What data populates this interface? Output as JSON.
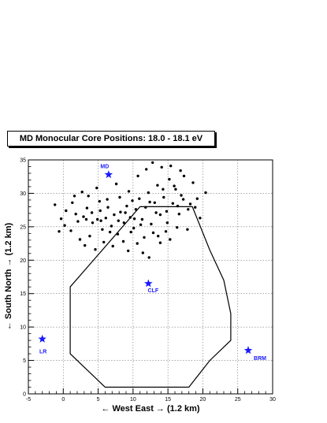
{
  "chart_data": {
    "type": "scatter",
    "title": "MD Monocular Core Positions: 18.0 - 18.1 eV",
    "xlabel": "← West East → (1.2 km)",
    "ylabel": "← South North → (1.2 km)",
    "xlim": [
      -5,
      30
    ],
    "ylim": [
      0,
      35
    ],
    "grid": true,
    "x_ticks": [
      "-5",
      "0",
      "5",
      "10",
      "15",
      "20",
      "25",
      "30"
    ],
    "y_ticks": [
      "0",
      "5",
      "10",
      "15",
      "20",
      "25",
      "30",
      "35"
    ],
    "sites": [
      {
        "name": "MD",
        "x": 6.5,
        "y": 32.8
      },
      {
        "name": "CLF",
        "x": 12.2,
        "y": 16.5
      },
      {
        "name": "LR",
        "x": -3.0,
        "y": 8.2
      },
      {
        "name": "BRM",
        "x": 26.5,
        "y": 6.5
      }
    ],
    "boundary": [
      [
        1,
        16
      ],
      [
        11,
        28
      ],
      [
        18.5,
        28
      ],
      [
        21,
        21.5
      ],
      [
        23,
        17
      ],
      [
        24,
        12
      ],
      [
        24,
        8
      ],
      [
        21,
        5
      ],
      [
        18,
        1
      ],
      [
        6,
        1
      ],
      [
        1,
        6
      ],
      [
        1,
        16
      ]
    ],
    "series": [
      {
        "points": [
          [
            -1.2,
            28.3
          ],
          [
            -0.6,
            24.3
          ],
          [
            0.2,
            25.2
          ],
          [
            1.3,
            28.6
          ],
          [
            1.8,
            26.9
          ],
          [
            2.1,
            25.8
          ],
          [
            2.9,
            26.5
          ],
          [
            3.4,
            27.8
          ],
          [
            3.8,
            23.6
          ],
          [
            4.2,
            25.6
          ],
          [
            4.9,
            26.1
          ],
          [
            5.3,
            27.4
          ],
          [
            5.6,
            24.6
          ],
          [
            6.1,
            26.3
          ],
          [
            6.4,
            27.9
          ],
          [
            6.9,
            25.1
          ],
          [
            7.3,
            26.8
          ],
          [
            7.8,
            23.9
          ],
          [
            8.2,
            27.2
          ],
          [
            8.7,
            25.6
          ],
          [
            9.1,
            28.1
          ],
          [
            9.6,
            26.4
          ],
          [
            10.1,
            24.8
          ],
          [
            10.4,
            27.6
          ],
          [
            10.9,
            29.2
          ],
          [
            11.3,
            26.1
          ],
          [
            11.8,
            27.9
          ],
          [
            12.2,
            30.1
          ],
          [
            12.6,
            25.4
          ],
          [
            13.1,
            28.6
          ],
          [
            13.5,
            31.2
          ],
          [
            13.9,
            26.8
          ],
          [
            14.4,
            29.4
          ],
          [
            14.8,
            27.3
          ],
          [
            15.2,
            32.1
          ],
          [
            15.7,
            28.5
          ],
          [
            16.1,
            30.6
          ],
          [
            16.6,
            26.9
          ],
          [
            17.2,
            29.1
          ],
          [
            17.9,
            27.6
          ],
          [
            18.6,
            31.6
          ],
          [
            19.2,
            29.2
          ],
          [
            20.4,
            30.1
          ],
          [
            1.1,
            24.4
          ],
          [
            2.4,
            23.1
          ],
          [
            3.1,
            22.2
          ],
          [
            4.6,
            21.6
          ],
          [
            5.8,
            22.7
          ],
          [
            7.1,
            22.1
          ],
          [
            8.6,
            22.8
          ],
          [
            9.3,
            21.4
          ],
          [
            10.6,
            22.5
          ],
          [
            11.4,
            21.1
          ],
          [
            12.3,
            20.4
          ],
          [
            13.6,
            23.6
          ],
          [
            14.7,
            24.3
          ],
          [
            16.3,
            24.9
          ],
          [
            17.8,
            24.6
          ],
          [
            3.6,
            29.6
          ],
          [
            4.8,
            30.8
          ],
          [
            6.3,
            29.1
          ],
          [
            7.6,
            31.4
          ],
          [
            9.4,
            30.3
          ],
          [
            10.7,
            32.6
          ],
          [
            11.9,
            33.6
          ],
          [
            12.8,
            34.6
          ],
          [
            14.1,
            33.9
          ],
          [
            15.4,
            34.1
          ],
          [
            16.8,
            33.4
          ],
          [
            17.3,
            32.6
          ],
          [
            0.4,
            27.4
          ],
          [
            -0.3,
            26.2
          ],
          [
            1.6,
            29.6
          ],
          [
            2.7,
            30.2
          ],
          [
            5.2,
            28.8
          ],
          [
            8.1,
            29.4
          ],
          [
            9.9,
            28.9
          ],
          [
            13.3,
            27.1
          ],
          [
            14.9,
            25.6
          ],
          [
            16.4,
            28.1
          ],
          [
            18.2,
            28.4
          ],
          [
            19.6,
            26.3
          ],
          [
            6.7,
            24.2
          ],
          [
            7.9,
            25.9
          ],
          [
            8.9,
            27.1
          ],
          [
            10.2,
            26.2
          ],
          [
            11.1,
            25.3
          ],
          [
            12.9,
            24.1
          ],
          [
            13.9,
            22.6
          ],
          [
            15.3,
            23.1
          ],
          [
            4.1,
            27.1
          ],
          [
            5.4,
            25.9
          ],
          [
            9.7,
            24.2
          ],
          [
            11.6,
            23.4
          ],
          [
            12.4,
            28.7
          ],
          [
            14.3,
            30.6
          ],
          [
            15.9,
            31.1
          ],
          [
            16.9,
            29.7
          ],
          [
            18.9,
            27.9
          ],
          [
            3.3,
            26.1
          ]
        ]
      }
    ]
  }
}
